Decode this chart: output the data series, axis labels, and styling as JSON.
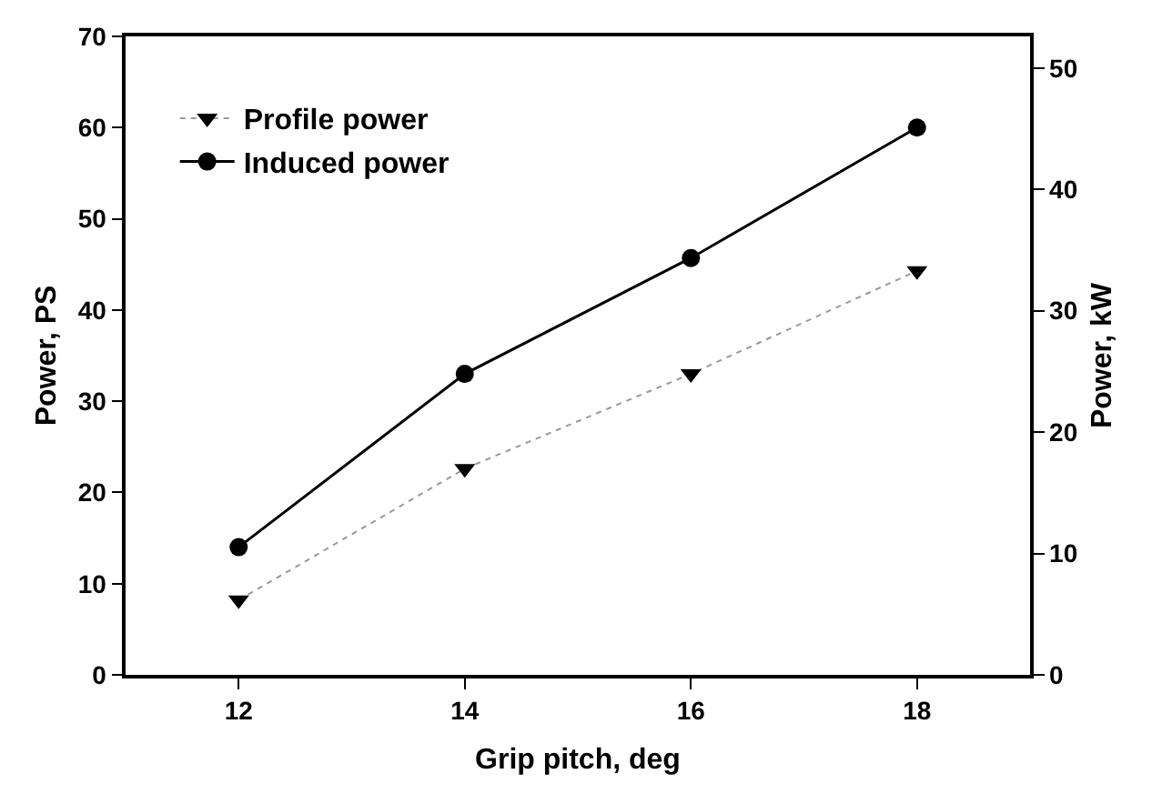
{
  "chart_data": {
    "type": "line",
    "xlabel": "Grip pitch, deg",
    "ylabel": "Power, PS",
    "y2label": "Power, kW",
    "x": [
      12,
      14,
      16,
      18
    ],
    "series": [
      {
        "name": "Profile power",
        "color": "#000000",
        "values": [
          8.2,
          22.6,
          33,
          44.3
        ],
        "marker": "triangle",
        "line_style": "dotted"
      },
      {
        "name": "Induced power",
        "color": "#000000",
        "values": [
          14,
          33,
          45.7,
          60
        ],
        "marker": "circle",
        "line_style": "solid"
      }
    ],
    "xlim": [
      11,
      19
    ],
    "xticks": [
      12,
      14,
      16,
      18
    ],
    "ylim": [
      0,
      70
    ],
    "yticks": [
      0,
      10,
      20,
      30,
      40,
      50,
      60,
      70
    ],
    "y2lim": [
      0,
      52.6
    ],
    "y2ticks": [
      0,
      10,
      20,
      30,
      40,
      50
    ],
    "legend": "top left"
  }
}
